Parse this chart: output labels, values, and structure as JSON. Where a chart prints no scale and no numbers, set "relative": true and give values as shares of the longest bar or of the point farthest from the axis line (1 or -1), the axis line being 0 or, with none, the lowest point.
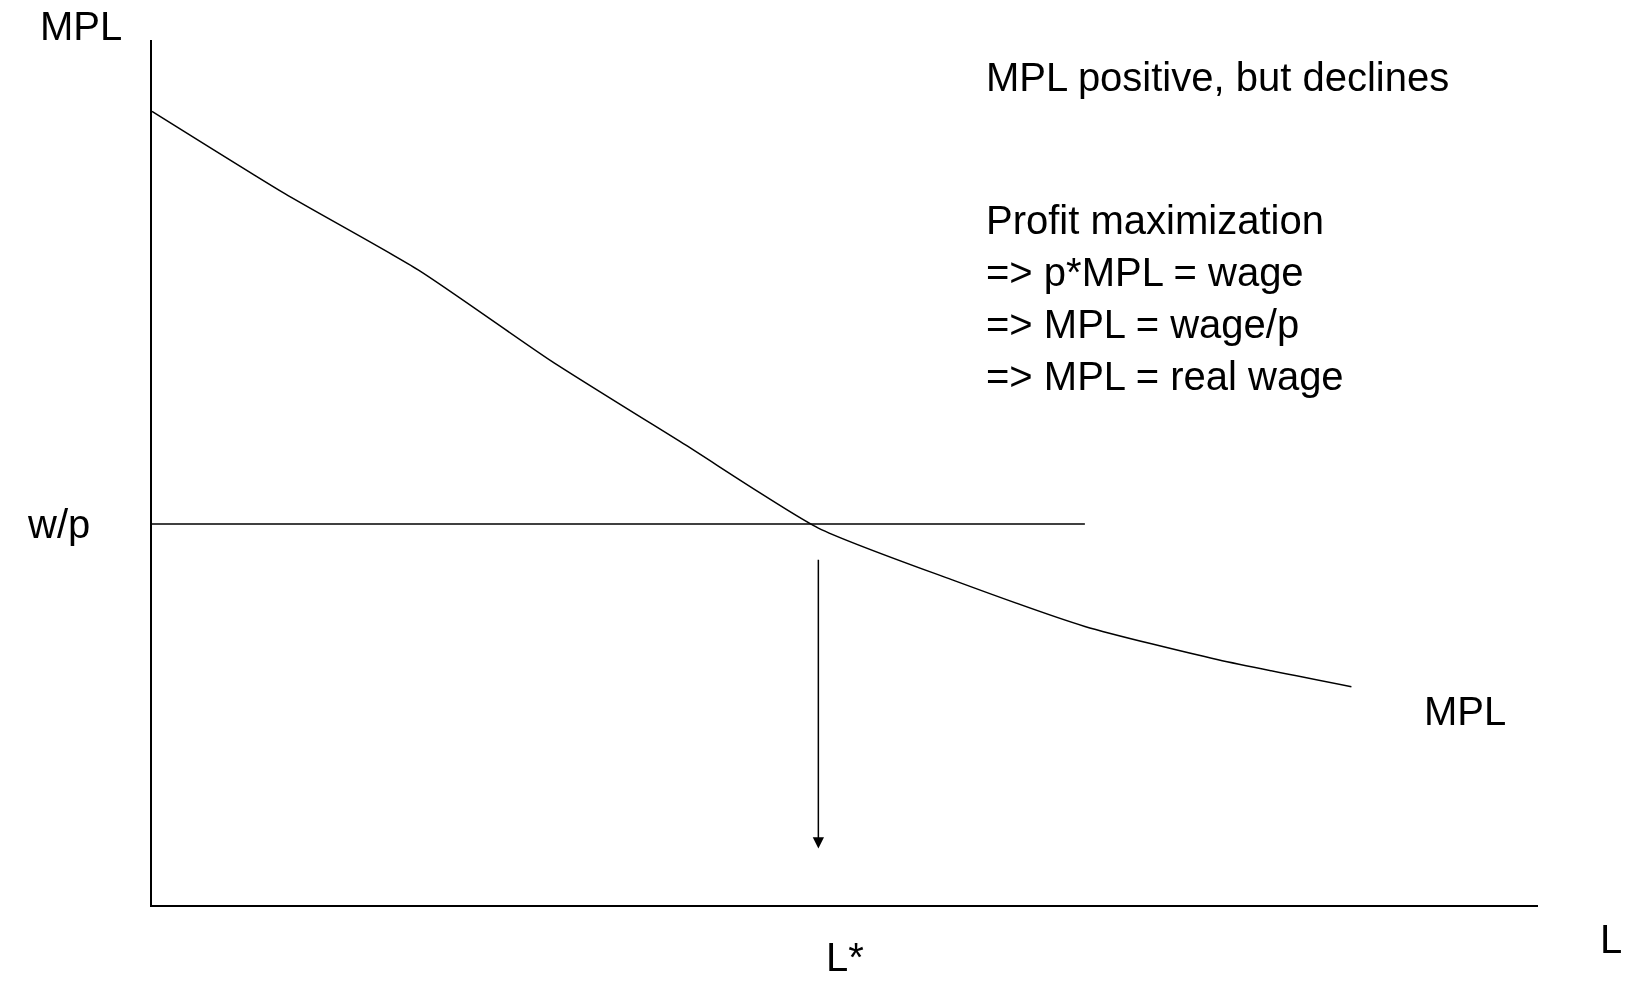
{
  "chart_data": {
    "type": "line",
    "relative": true,
    "xlabel": "L",
    "ylabel": "MPL",
    "categories": [
      null,
      null,
      null,
      null,
      null,
      null,
      null,
      null,
      null,
      null,
      null
    ],
    "series": [
      {
        "name": "MPL",
        "color": "#000000",
        "values": [
          1.0,
          0.896,
          0.8,
          0.685,
          0.58,
          0.475,
          0.41,
          0.351,
          0.309,
          0.275,
          null
        ]
      },
      {
        "name": "w/p",
        "color": "#000000",
        "values": [
          0.48,
          0.48,
          0.48,
          0.48,
          0.48,
          0.48,
          0.48,
          0.48,
          null,
          null,
          null
        ]
      }
    ],
    "annotations": [
      "MPL positive, but declines",
      "Profit maximization\n=> p*MPL = wage\n=> MPL = wage/p\n=> MPL = real wage",
      "L*"
    ],
    "legend": false,
    "marker": "none",
    "line_style": "solid"
  }
}
